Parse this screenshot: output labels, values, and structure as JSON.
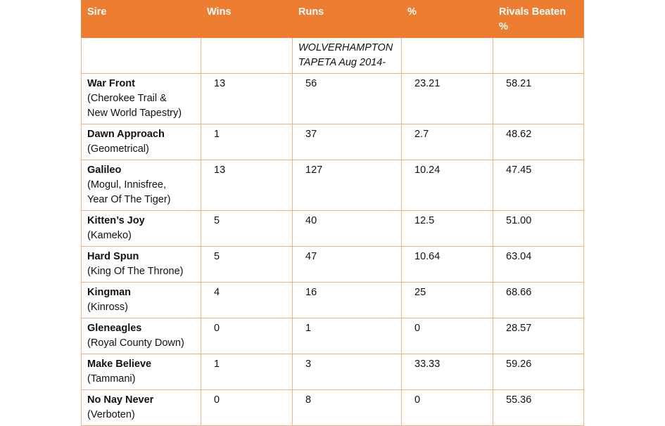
{
  "table": {
    "header": [
      "Sire",
      "Wins",
      "Runs",
      "%",
      "Rivals Beaten %"
    ],
    "subheading": "WOLVERHAMPTON TAPETA Aug 2014-",
    "rows": [
      {
        "sire": "War Front",
        "note": [
          "(Cherokee Trail &",
          "New World Tapestry)"
        ],
        "wins": "13",
        "runs": "56",
        "pct": "23.21",
        "rivals": "58.21"
      },
      {
        "sire": "Dawn Approach",
        "note": [
          "(Geometrical)"
        ],
        "wins": "1",
        "runs": "37",
        "pct": "2.7",
        "rivals": "48.62"
      },
      {
        "sire": "Galileo",
        "note": [
          "(Mogul, Innisfree,",
          "Year Of The Tiger)"
        ],
        "wins": "13",
        "runs": "127",
        "pct": "10.24",
        "rivals": "47.45"
      },
      {
        "sire": "Kitten’s Joy",
        "note": [
          "(Kameko)"
        ],
        "wins": "5",
        "runs": "40",
        "pct": "12.5",
        "rivals": "51.00"
      },
      {
        "sire": "Hard Spun",
        "note": [
          "(King Of The Throne)"
        ],
        "wins": "5",
        "runs": "47",
        "pct": "10.64",
        "rivals": "63.04"
      },
      {
        "sire": "Kingman",
        "note": [
          "(Kinross)"
        ],
        "wins": "4",
        "runs": "16",
        "pct": "25",
        "rivals": "68.66"
      },
      {
        "sire": "Gleneagles",
        "note": [
          "(Royal County Down)"
        ],
        "wins": "0",
        "runs": "1",
        "pct": "0",
        "rivals": "28.57"
      },
      {
        "sire": "Make Believe",
        "note": [
          "(Tammani)"
        ],
        "wins": "1",
        "runs": "3",
        "pct": "33.33",
        "rivals": "59.26"
      },
      {
        "sire": "No Nay Never",
        "note": [
          "(Verboten)"
        ],
        "wins": "0",
        "runs": "8",
        "pct": "0",
        "rivals": "55.36"
      }
    ]
  }
}
